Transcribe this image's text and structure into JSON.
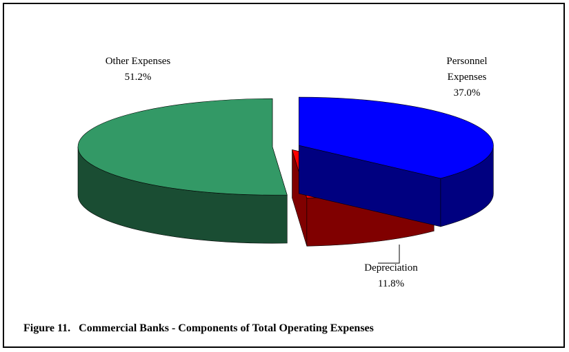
{
  "chart_data": {
    "type": "pie",
    "title": "Figure 11.   Commercial Banks - Components of Total Operating Expenses",
    "categories": [
      "Personnel Expenses",
      "Depreciation",
      "Other Expenses"
    ],
    "values": [
      37.0,
      11.8,
      51.2
    ],
    "value_labels": [
      "37.0%",
      "11.8%",
      "51.2%"
    ],
    "colors": [
      "#0000ff",
      "#ff0000",
      "#339966"
    ]
  }
}
